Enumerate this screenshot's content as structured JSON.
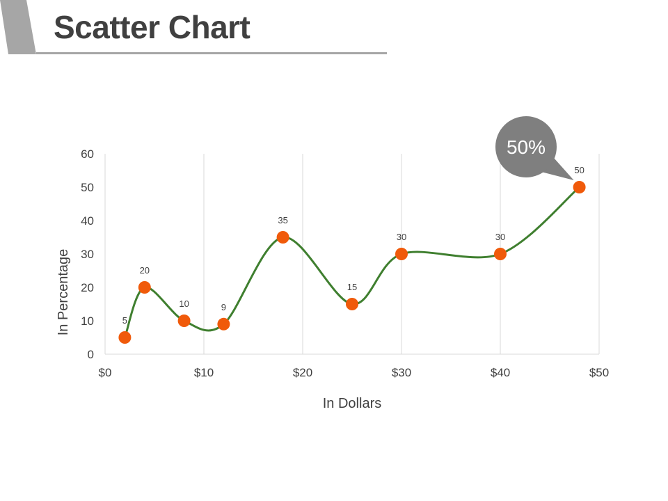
{
  "page": {
    "title": "Scatter Chart"
  },
  "colors": {
    "line": "#3f7f2f",
    "marker": "#f05a0a",
    "gridline": "#d9d9d9",
    "callout": "#7f7f7f",
    "title_accent": "#a6a6a6"
  },
  "chart_data": {
    "type": "scatter",
    "xlabel": "In Dollars",
    "ylabel": "In Percentage",
    "xlim": [
      0,
      50
    ],
    "ylim": [
      0,
      60
    ],
    "x_ticks": [
      0,
      10,
      20,
      30,
      40,
      50
    ],
    "x_tick_labels": [
      "$0",
      "$10",
      "$20",
      "$30",
      "$40",
      "$50"
    ],
    "y_ticks": [
      0,
      10,
      20,
      30,
      40,
      50,
      60
    ],
    "y_tick_labels": [
      "0",
      "10",
      "20",
      "30",
      "40",
      "50",
      "60"
    ],
    "grid": "vertical",
    "smooth_line": true,
    "series": [
      {
        "x": [
          2,
          4,
          8,
          12,
          18,
          25,
          30,
          40,
          48
        ],
        "y": [
          5,
          20,
          10,
          9,
          35,
          15,
          30,
          30,
          50
        ],
        "data_labels": [
          "5",
          "20",
          "10",
          "9",
          "35",
          "15",
          "30",
          "30",
          "50"
        ]
      }
    ],
    "annotation": {
      "text": "50%",
      "x": 48,
      "y": 50
    }
  }
}
